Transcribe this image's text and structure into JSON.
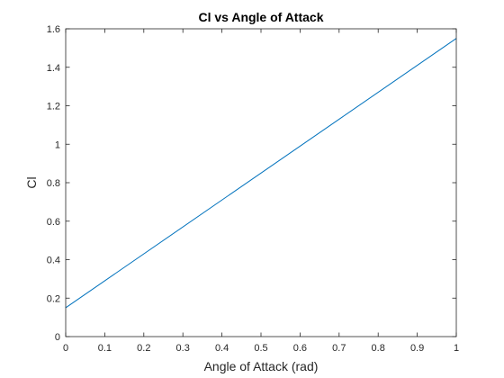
{
  "chart_data": {
    "type": "line",
    "title": "Cl vs Angle of Attack",
    "xlabel": "Angle of Attack (rad)",
    "ylabel": "Cl",
    "xlim": [
      0,
      1
    ],
    "ylim": [
      0,
      1.6
    ],
    "xticks": [
      0,
      0.1,
      0.2,
      0.3,
      0.4,
      0.5,
      0.6,
      0.7,
      0.8,
      0.9,
      1
    ],
    "xtick_labels": [
      "0",
      "0.1",
      "0.2",
      "0.3",
      "0.4",
      "0.5",
      "0.6",
      "0.7",
      "0.8",
      "0.9",
      "1"
    ],
    "yticks": [
      0,
      0.2,
      0.4,
      0.6,
      0.8,
      1,
      1.2,
      1.4,
      1.6
    ],
    "ytick_labels": [
      "0",
      "0.2",
      "0.4",
      "0.6",
      "0.8",
      "1",
      "1.2",
      "1.4",
      "1.6"
    ],
    "grid": false,
    "box": true,
    "series": [
      {
        "x": [
          0,
          1
        ],
        "y": [
          0.15,
          1.55
        ],
        "color": "#0072bd"
      }
    ]
  }
}
